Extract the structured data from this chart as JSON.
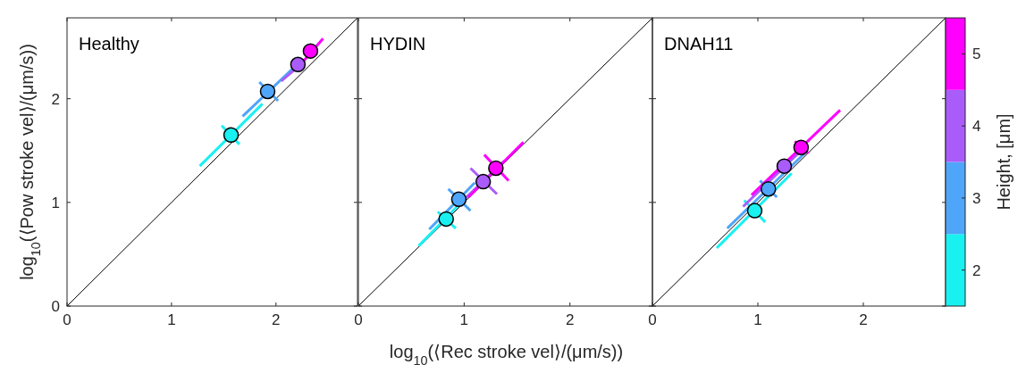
{
  "chart_data": [
    {
      "type": "scatter",
      "title": "Healthy",
      "ylabel": "log$_{10}$(⟨Pow stroke vel⟩/(μm/s))",
      "xlim": [
        0,
        2.78
      ],
      "ylim": [
        0,
        2.78
      ],
      "xticks": [
        0,
        1,
        2
      ],
      "yticks": [
        0,
        1,
        2
      ],
      "series": [
        {
          "type": "line",
          "color": "#000000",
          "x": [
            0,
            2.78
          ],
          "values": [
            0,
            2.78
          ]
        },
        {
          "type": "line",
          "color": "#19f0f0",
          "x": [
            1.27,
            1.87
          ],
          "values": [
            1.35,
            1.95
          ]
        },
        {
          "type": "line",
          "color": "#19f0f0",
          "x": [
            1.48,
            1.65
          ],
          "values": [
            1.74,
            1.56
          ]
        },
        {
          "type": "line",
          "color": "#4ea5f9",
          "x": [
            1.68,
            2.17
          ],
          "values": [
            1.83,
            2.3
          ]
        },
        {
          "type": "line",
          "color": "#4ea5f9",
          "x": [
            1.84,
            2.02
          ],
          "values": [
            2.16,
            1.98
          ]
        },
        {
          "type": "line",
          "color": "#a95cf9",
          "x": [
            2.05,
            2.26
          ],
          "values": [
            2.17,
            2.35
          ]
        },
        {
          "type": "line",
          "color": "#ff00ff",
          "x": [
            2.21,
            2.45
          ],
          "values": [
            2.3,
            2.58
          ]
        },
        {
          "marker": "circle",
          "x": [
            1.57,
            1.92,
            2.21,
            2.33
          ],
          "values": [
            1.65,
            2.07,
            2.33,
            2.46
          ],
          "colors": [
            "#19f0f0",
            "#4ea5f9",
            "#a95cf9",
            "#ff00ff"
          ]
        }
      ]
    },
    {
      "type": "scatter",
      "title": "HYDIN",
      "xlabel": "log$_{10}$(⟨Rec stroke vel⟩/(μm/s))",
      "xlim": [
        0,
        2.78
      ],
      "ylim": [
        0,
        2.78
      ],
      "xticks": [
        0,
        1,
        2
      ],
      "yticks": [
        0,
        1,
        2
      ],
      "tick_labels": "x",
      "series": [
        {
          "type": "line",
          "color": "#000000",
          "x": [
            0,
            2.78
          ],
          "values": [
            0,
            2.78
          ]
        },
        {
          "type": "line",
          "color": "#19f0f0",
          "x": [
            0.57,
            0.99
          ],
          "values": [
            0.58,
            1.02
          ]
        },
        {
          "type": "line",
          "color": "#19f0f0",
          "x": [
            0.75,
            0.92
          ],
          "values": [
            0.91,
            0.75
          ]
        },
        {
          "type": "line",
          "color": "#4ea5f9",
          "x": [
            0.67,
            1.1
          ],
          "values": [
            0.74,
            1.19
          ]
        },
        {
          "type": "line",
          "color": "#4ea5f9",
          "x": [
            0.85,
            1.06
          ],
          "values": [
            1.13,
            0.92
          ]
        },
        {
          "type": "line",
          "color": "#a95cf9",
          "x": [
            0.95,
            1.38
          ],
          "values": [
            0.98,
            1.4
          ]
        },
        {
          "type": "line",
          "color": "#a95cf9",
          "x": [
            1.06,
            1.31
          ],
          "values": [
            1.33,
            1.08
          ]
        },
        {
          "type": "line",
          "color": "#ff00ff",
          "x": [
            1.04,
            1.56
          ],
          "values": [
            1.05,
            1.58
          ]
        },
        {
          "type": "line",
          "color": "#ff00ff",
          "x": [
            1.19,
            1.42
          ],
          "values": [
            1.46,
            1.21
          ]
        },
        {
          "marker": "circle",
          "x": [
            0.83,
            0.95,
            1.18,
            1.3
          ],
          "values": [
            0.84,
            1.03,
            1.2,
            1.33
          ],
          "colors": [
            "#19f0f0",
            "#4ea5f9",
            "#a95cf9",
            "#ff00ff"
          ]
        }
      ]
    },
    {
      "type": "scatter",
      "title": "DNAH11",
      "clabel": "Height, [μm]",
      "clim": [
        1.5,
        5.5
      ],
      "cticks": [
        2,
        3,
        4,
        5
      ],
      "xlim": [
        0,
        2.78
      ],
      "ylim": [
        0,
        2.78
      ],
      "xticks": [
        0,
        1,
        2
      ],
      "yticks": [
        0,
        1,
        2
      ],
      "tick_labels": "x",
      "series": [
        {
          "type": "line",
          "color": "#000000",
          "x": [
            0,
            2.78
          ],
          "values": [
            0,
            2.78
          ]
        },
        {
          "type": "line",
          "color": "#19f0f0",
          "x": [
            0.61,
            1.32
          ],
          "values": [
            0.56,
            1.28
          ]
        },
        {
          "type": "line",
          "color": "#19f0f0",
          "x": [
            0.87,
            1.07
          ],
          "values": [
            1.02,
            0.81
          ]
        },
        {
          "type": "line",
          "color": "#4ea5f9",
          "x": [
            0.71,
            1.45
          ],
          "values": [
            0.75,
            1.48
          ]
        },
        {
          "type": "line",
          "color": "#4ea5f9",
          "x": [
            1.02,
            1.18
          ],
          "values": [
            1.21,
            1.05
          ]
        },
        {
          "type": "line",
          "color": "#a95cf9",
          "x": [
            0.86,
            1.4
          ],
          "values": [
            0.96,
            1.49
          ]
        },
        {
          "type": "line",
          "color": "#ff00ff",
          "x": [
            0.94,
            1.78
          ],
          "values": [
            1.07,
            1.89
          ]
        },
        {
          "type": "line",
          "color": "#ff00ff",
          "x": [
            1.35,
            1.48
          ],
          "values": [
            1.59,
            1.47
          ]
        },
        {
          "marker": "circle",
          "x": [
            0.97,
            1.1,
            1.25,
            1.41
          ],
          "values": [
            0.92,
            1.13,
            1.35,
            1.53
          ],
          "colors": [
            "#19f0f0",
            "#4ea5f9",
            "#a95cf9",
            "#ff00ff"
          ]
        }
      ]
    }
  ]
}
